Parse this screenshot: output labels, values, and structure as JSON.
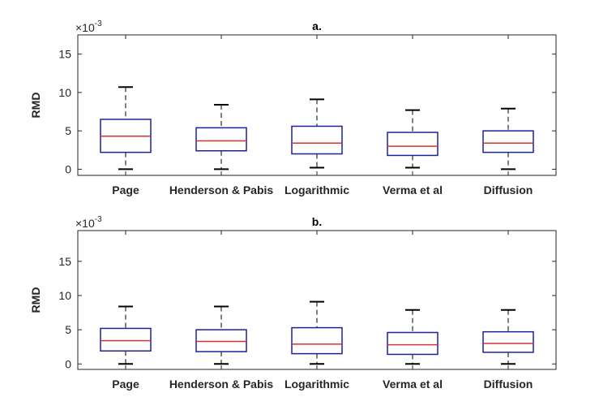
{
  "chart_data": [
    {
      "type": "boxplot",
      "title": "a.",
      "ylabel": "RMD",
      "exponent_label": "×10",
      "exponent": "-3",
      "ylim": [
        -0.8,
        17.5
      ],
      "yticks": [
        0,
        5,
        10,
        15
      ],
      "categories": [
        "Page",
        "Henderson & Pabis",
        "Logarithmic",
        "Verma et al",
        "Diffusion"
      ],
      "boxes": [
        {
          "name": "Page",
          "min": 0.0,
          "q1": 2.2,
          "median": 4.3,
          "q3": 6.5,
          "max": 10.7
        },
        {
          "name": "Henderson & Pabis",
          "min": 0.0,
          "q1": 2.4,
          "median": 3.7,
          "q3": 5.4,
          "max": 8.4
        },
        {
          "name": "Logarithmic",
          "min": 0.2,
          "q1": 2.0,
          "median": 3.4,
          "q3": 5.6,
          "max": 9.1
        },
        {
          "name": "Verma et al",
          "min": 0.2,
          "q1": 1.8,
          "median": 3.0,
          "q3": 4.8,
          "max": 7.7
        },
        {
          "name": "Diffusion",
          "min": 0.0,
          "q1": 2.2,
          "median": 3.4,
          "q3": 5.0,
          "max": 7.9
        }
      ]
    },
    {
      "type": "boxplot",
      "title": "b.",
      "ylabel": "RMD",
      "exponent_label": "×10",
      "exponent": "-3",
      "ylim": [
        -0.8,
        19.5
      ],
      "yticks": [
        0,
        5,
        10,
        15
      ],
      "categories": [
        "Page",
        "Henderson & Pabis",
        "Logarithmic",
        "Verma et al",
        "Diffusion"
      ],
      "boxes": [
        {
          "name": "Page",
          "min": 0.0,
          "q1": 1.9,
          "median": 3.4,
          "q3": 5.2,
          "max": 8.4
        },
        {
          "name": "Henderson & Pabis",
          "min": 0.0,
          "q1": 1.8,
          "median": 3.3,
          "q3": 5.0,
          "max": 8.4
        },
        {
          "name": "Logarithmic",
          "min": 0.0,
          "q1": 1.5,
          "median": 2.9,
          "q3": 5.3,
          "max": 9.1
        },
        {
          "name": "Verma et al",
          "min": 0.0,
          "q1": 1.4,
          "median": 2.8,
          "q3": 4.6,
          "max": 7.9
        },
        {
          "name": "Diffusion",
          "min": 0.0,
          "q1": 1.7,
          "median": 3.0,
          "q3": 4.7,
          "max": 7.9
        }
      ]
    }
  ],
  "colors": {
    "box": "#1f1fa0",
    "median": "#d93030",
    "whisker": "#000000",
    "axis": "#262626"
  }
}
